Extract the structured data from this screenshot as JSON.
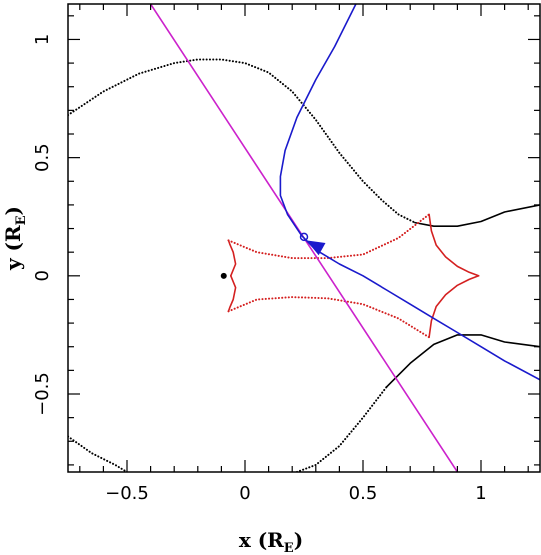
{
  "chart_data": {
    "type": "line",
    "title": "",
    "xlabel": {
      "main": "x (R",
      "sub": "E",
      "close": ")"
    },
    "ylabel": {
      "main": "y (R",
      "sub": "E",
      "close": ")"
    },
    "xlim": [
      -0.75,
      1.25
    ],
    "ylim": [
      -0.83,
      1.15
    ],
    "x_ticks": [
      -0.5,
      0,
      0.5,
      1
    ],
    "x_tick_labels": [
      "−0.5",
      "0",
      "0.5",
      "1"
    ],
    "y_ticks": [
      -0.5,
      0,
      0.5,
      1
    ],
    "y_tick_labels": [
      "−0.5",
      "0",
      "0.5",
      "1"
    ],
    "grid": false,
    "legend": "none",
    "colors": {
      "critical_curve": "#000000",
      "caustic": "#d42020",
      "trajectory": "#cc22cc",
      "image_track": "#1a1acc"
    },
    "series": [
      {
        "style": "dotted",
        "color": "#000000",
        "points": [
          [
            -0.75,
            0.68
          ],
          [
            -0.6,
            0.78
          ],
          [
            -0.45,
            0.855
          ],
          [
            -0.3,
            0.9
          ],
          [
            -0.2,
            0.915
          ],
          [
            -0.1,
            0.915
          ],
          [
            0.0,
            0.9
          ],
          [
            0.1,
            0.86
          ],
          [
            0.2,
            0.78
          ],
          [
            0.3,
            0.66
          ],
          [
            0.4,
            0.52
          ],
          [
            0.5,
            0.4
          ],
          [
            0.58,
            0.32
          ],
          [
            0.65,
            0.26
          ],
          [
            0.72,
            0.225
          ]
        ]
      },
      {
        "style": "solid",
        "color": "#000000",
        "points": [
          [
            0.72,
            0.225
          ],
          [
            0.8,
            0.21
          ],
          [
            0.9,
            0.21
          ],
          [
            1.0,
            0.23
          ],
          [
            1.1,
            0.27
          ],
          [
            1.25,
            0.3
          ]
        ]
      },
      {
        "style": "dotted",
        "color": "#000000",
        "points": [
          [
            -0.75,
            -0.68
          ],
          [
            -0.65,
            -0.75
          ],
          [
            -0.55,
            -0.8
          ],
          [
            -0.5,
            -0.83
          ]
        ]
      },
      {
        "style": "dotted",
        "color": "#000000",
        "points": [
          [
            0.22,
            -0.83
          ],
          [
            0.3,
            -0.8
          ],
          [
            0.4,
            -0.72
          ],
          [
            0.5,
            -0.6
          ],
          [
            0.6,
            -0.47
          ]
        ]
      },
      {
        "style": "solid",
        "color": "#000000",
        "points": [
          [
            0.6,
            -0.47
          ],
          [
            0.7,
            -0.37
          ],
          [
            0.8,
            -0.29
          ],
          [
            0.9,
            -0.25
          ],
          [
            1.0,
            -0.25
          ],
          [
            1.1,
            -0.28
          ],
          [
            1.25,
            -0.3
          ]
        ]
      },
      {
        "style": "solid",
        "color": "#d42020",
        "points": [
          [
            -0.06,
            0.0
          ],
          [
            -0.04,
            0.05
          ],
          [
            -0.05,
            0.1
          ],
          [
            -0.065,
            0.135
          ],
          [
            -0.07,
            0.15
          ]
        ]
      },
      {
        "style": "solid",
        "color": "#d42020",
        "points": [
          [
            -0.06,
            0.0
          ],
          [
            -0.04,
            -0.05
          ],
          [
            -0.05,
            -0.1
          ],
          [
            -0.065,
            -0.135
          ],
          [
            -0.07,
            -0.15
          ]
        ]
      },
      {
        "style": "dotted",
        "color": "#d42020",
        "points": [
          [
            -0.07,
            0.15
          ],
          [
            0.05,
            0.1
          ],
          [
            0.2,
            0.075
          ],
          [
            0.35,
            0.075
          ],
          [
            0.5,
            0.09
          ],
          [
            0.65,
            0.16
          ],
          [
            0.78,
            0.26
          ]
        ]
      },
      {
        "style": "dotted",
        "color": "#d42020",
        "points": [
          [
            -0.07,
            -0.15
          ],
          [
            0.05,
            -0.1
          ],
          [
            0.2,
            -0.09
          ],
          [
            0.35,
            -0.095
          ],
          [
            0.5,
            -0.12
          ],
          [
            0.65,
            -0.18
          ],
          [
            0.78,
            -0.26
          ]
        ]
      },
      {
        "style": "solid",
        "color": "#d42020",
        "points": [
          [
            0.78,
            0.26
          ],
          [
            0.79,
            0.19
          ],
          [
            0.81,
            0.13
          ],
          [
            0.85,
            0.08
          ],
          [
            0.9,
            0.04
          ],
          [
            0.95,
            0.015
          ],
          [
            0.99,
            0.0
          ]
        ]
      },
      {
        "style": "solid",
        "color": "#d42020",
        "points": [
          [
            0.78,
            -0.26
          ],
          [
            0.79,
            -0.19
          ],
          [
            0.81,
            -0.13
          ],
          [
            0.85,
            -0.08
          ],
          [
            0.9,
            -0.04
          ],
          [
            0.95,
            -0.015
          ],
          [
            0.99,
            0.0
          ]
        ]
      },
      {
        "style": "solid",
        "color": "#cc22cc",
        "points": [
          [
            -0.4,
            1.15
          ],
          [
            0.9,
            -0.83
          ]
        ]
      },
      {
        "style": "solid",
        "color": "#1a1acc",
        "points": [
          [
            0.47,
            1.15
          ],
          [
            0.38,
            0.97
          ],
          [
            0.3,
            0.83
          ],
          [
            0.22,
            0.67
          ],
          [
            0.17,
            0.53
          ],
          [
            0.15,
            0.42
          ],
          [
            0.15,
            0.34
          ],
          [
            0.18,
            0.26
          ],
          [
            0.24,
            0.17
          ],
          [
            0.3,
            0.11
          ],
          [
            0.4,
            0.05
          ],
          [
            0.5,
            0.0
          ],
          [
            0.6,
            -0.06
          ],
          [
            0.7,
            -0.12
          ],
          [
            0.8,
            -0.18
          ],
          [
            0.9,
            -0.24
          ],
          [
            1.0,
            -0.3
          ],
          [
            1.1,
            -0.36
          ],
          [
            1.25,
            -0.44
          ]
        ]
      }
    ],
    "markers": [
      {
        "type": "filled-circle",
        "color": "#000000",
        "x": -0.09,
        "y": 0.0
      },
      {
        "type": "open-circle",
        "color": "#1a1acc",
        "x": 0.25,
        "y": 0.165
      }
    ],
    "arrow": {
      "color": "#1a1acc",
      "from": [
        0.35,
        0.1
      ],
      "to": [
        0.26,
        0.15
      ]
    }
  }
}
